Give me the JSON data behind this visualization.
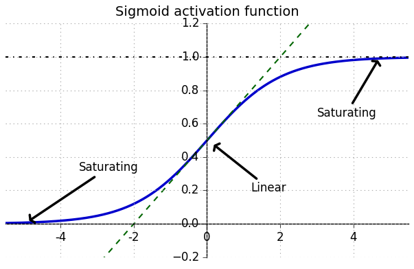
{
  "title": "Sigmoid activation function",
  "xlim": [
    -5.5,
    5.5
  ],
  "ylim": [
    -0.25,
    1.25
  ],
  "ylim_display": [
    -0.2,
    1.2
  ],
  "xticks": [
    -4,
    -2,
    0,
    2,
    4
  ],
  "yticks": [
    -0.2,
    0.0,
    0.2,
    0.4,
    0.6,
    0.8,
    1.0,
    1.2
  ],
  "sigmoid_color": "#0000cc",
  "sigmoid_linewidth": 2.5,
  "linear_color": "#006600",
  "linear_style": "--",
  "linear_linewidth": 1.5,
  "hline_y": 1.0,
  "hline_color": "#000000",
  "hline_style": "-.",
  "hline_linewidth": 1.5,
  "grid_color": "#aaaaaa",
  "grid_style": ":",
  "grid_linewidth": 0.8,
  "background_color": "#ffffff",
  "title_fontsize": 14,
  "label_fontsize": 12,
  "ann_fontsize": 12,
  "figsize": [
    6.03,
    3.92
  ],
  "dpi": 100,
  "linear_slope": 0.25,
  "linear_intercept": 0.5
}
